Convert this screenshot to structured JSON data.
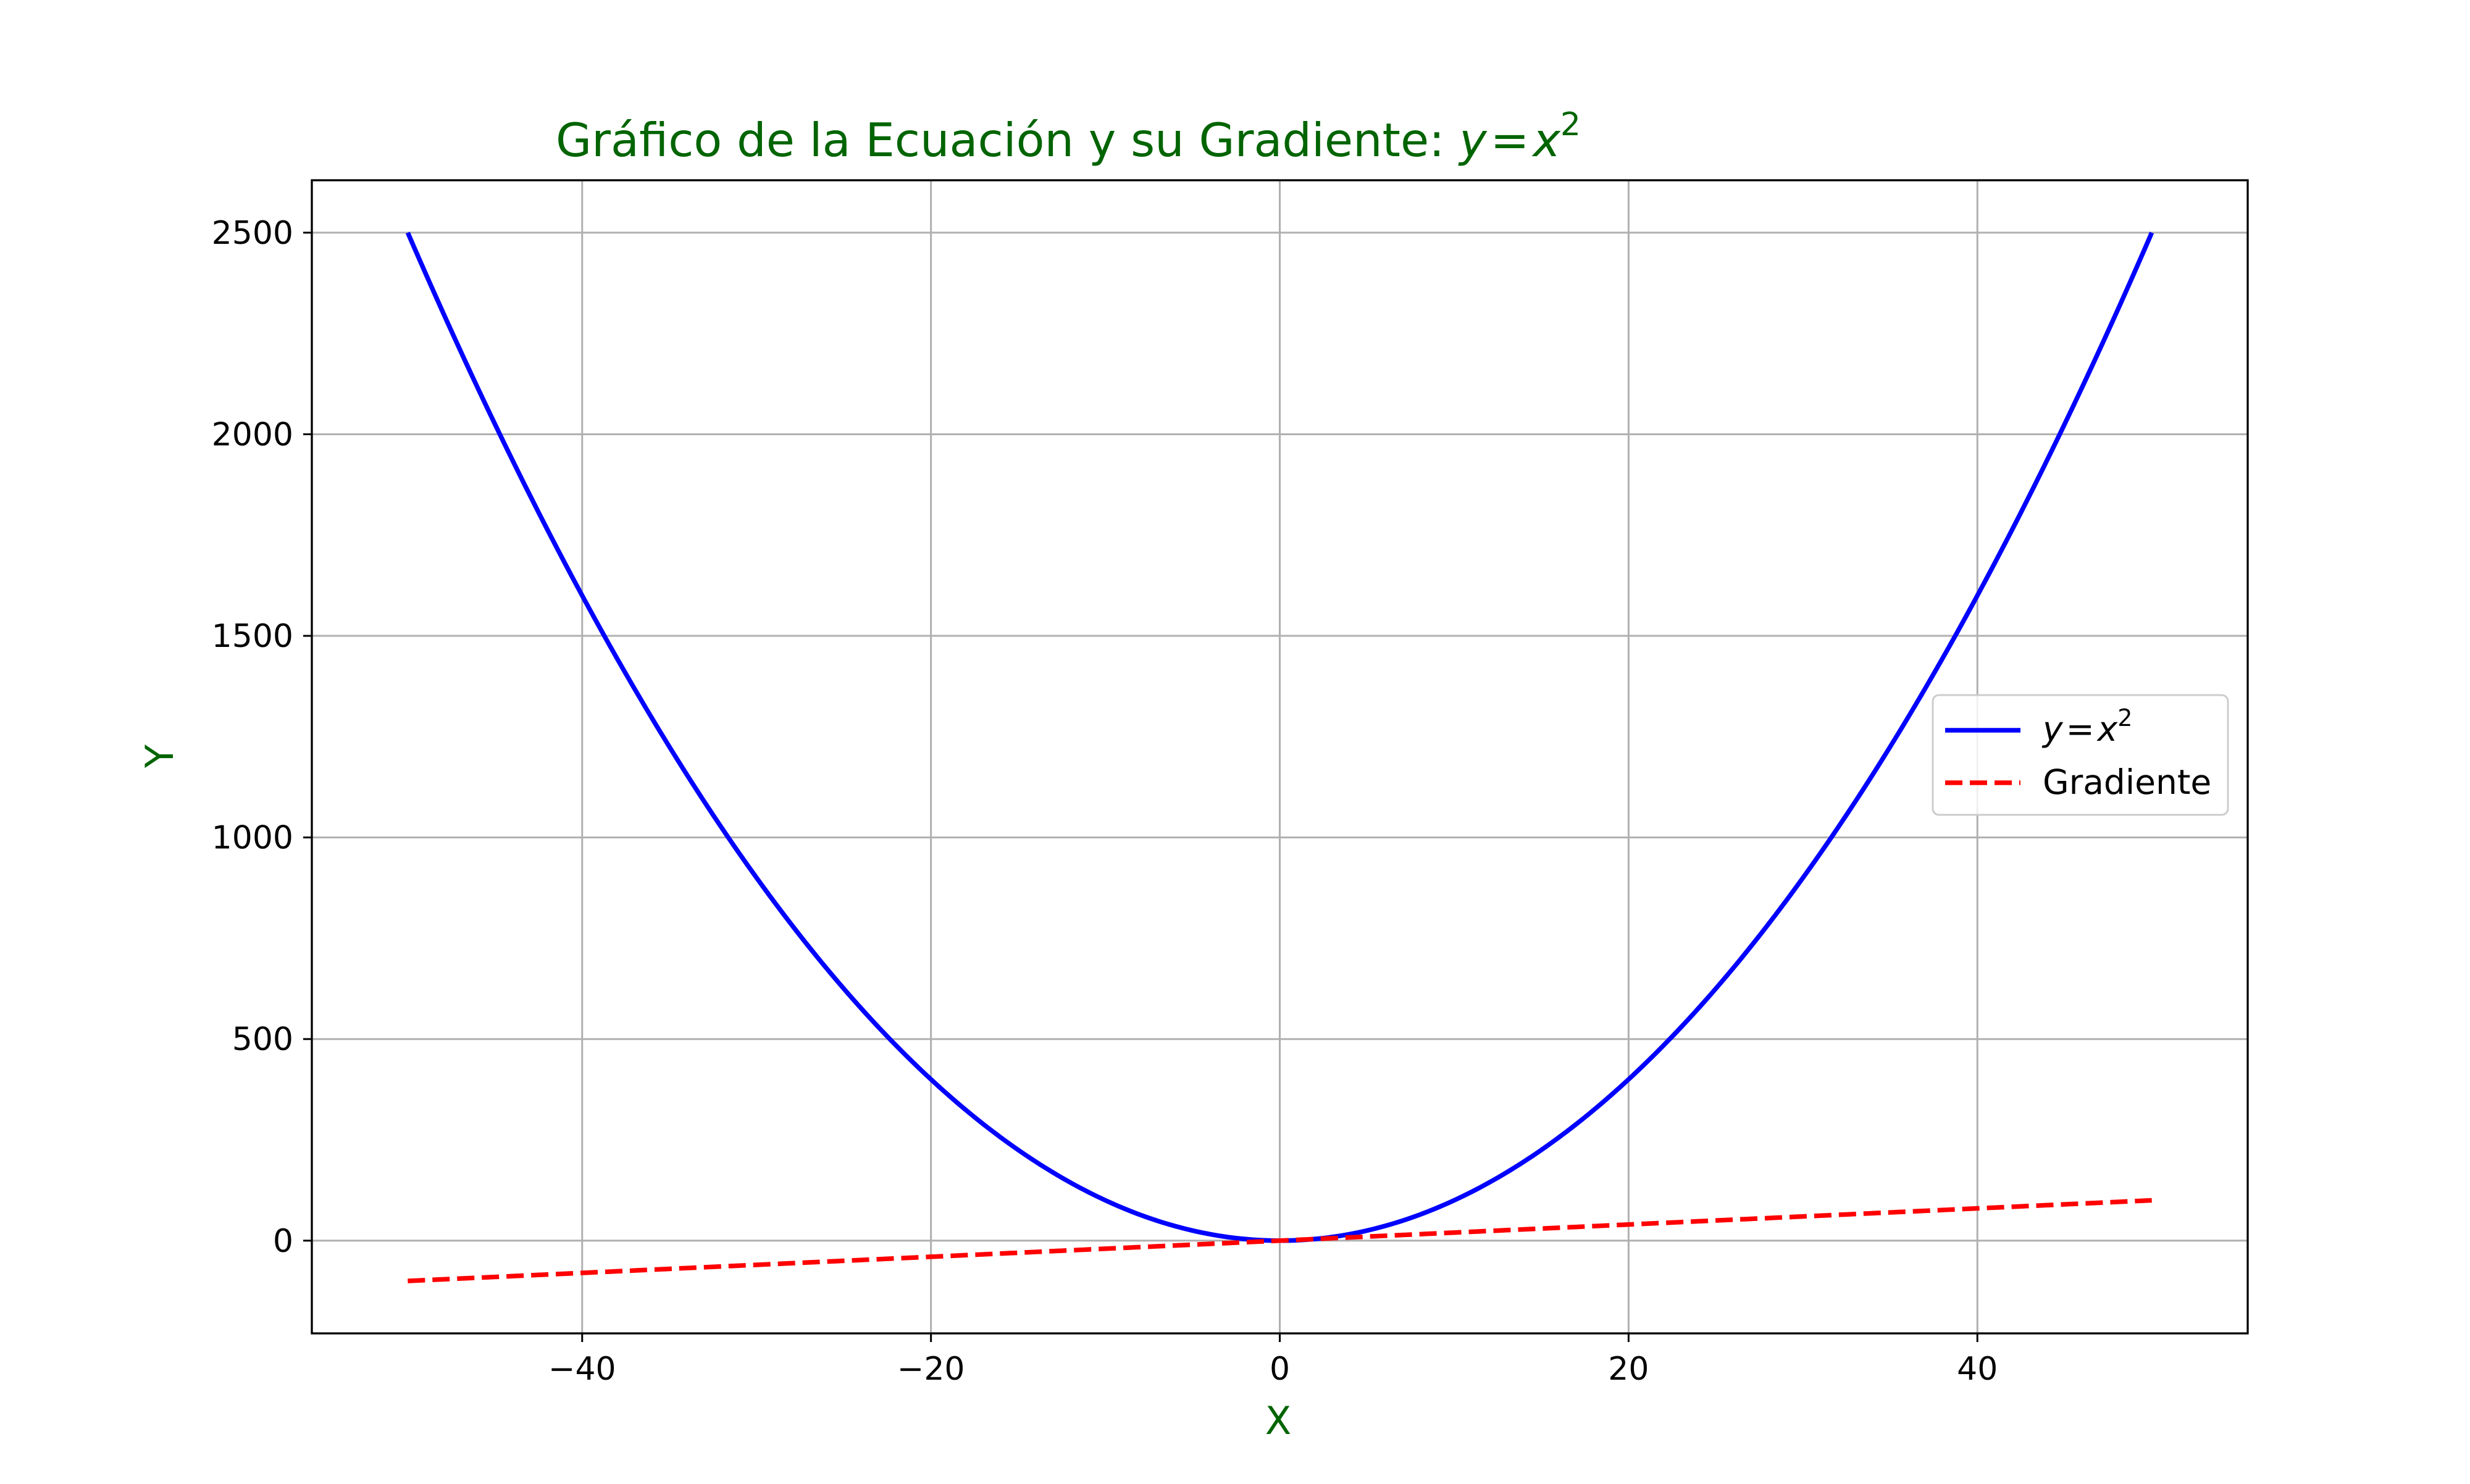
{
  "chart_data": {
    "type": "line",
    "title_text": "Gráfico de la Ecuación y su Gradiente: ",
    "title_math": {
      "lhs": "y",
      "op": "=",
      "base": "x",
      "exp": "2"
    },
    "xlabel": "X",
    "ylabel": "Y",
    "xlim": [
      -55.5,
      55.5
    ],
    "ylim": [
      -230,
      2630
    ],
    "xticks": [
      -40,
      -20,
      0,
      20,
      40
    ],
    "xtick_labels": [
      "−40",
      "−20",
      "0",
      "20",
      "40"
    ],
    "yticks": [
      0,
      500,
      1000,
      1500,
      2000,
      2500
    ],
    "ytick_labels": [
      "0",
      "500",
      "1000",
      "1500",
      "2000",
      "2500"
    ],
    "grid": true,
    "legend_placement": "center-right",
    "series": [
      {
        "name": "y = x²",
        "legend_math": {
          "lhs": "y",
          "op": "=",
          "base": "x",
          "exp": "2"
        },
        "style": "solid",
        "color": "#0000ff",
        "function": "x^2",
        "x_range": [
          -50,
          50
        ]
      },
      {
        "name": "Gradiente",
        "style": "dashed",
        "color": "#ff0000",
        "function": "2x",
        "x_range": [
          -50,
          50
        ]
      }
    ]
  },
  "colors": {
    "title": "#006400",
    "axis_label": "#006400",
    "grid": "#b0b0b0",
    "frame": "#000000",
    "tick_text": "#000000"
  }
}
